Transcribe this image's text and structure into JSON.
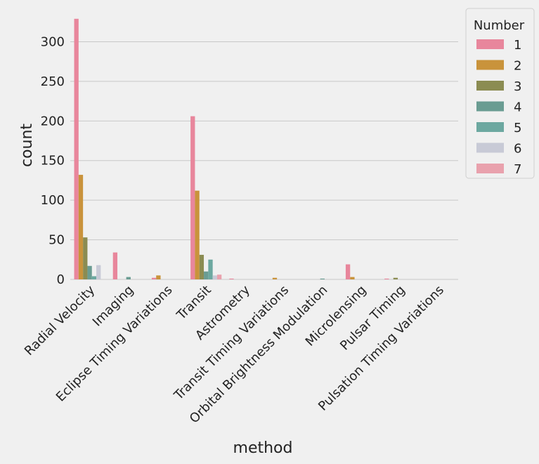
{
  "chart_data": {
    "type": "bar",
    "xlabel": "method",
    "ylabel": "count",
    "ylim": [
      0,
      335
    ],
    "yticks": [
      0,
      50,
      100,
      150,
      200,
      250,
      300
    ],
    "grid": "horizontal",
    "legend": {
      "title": "Number",
      "placement": "outside-top-right"
    },
    "categories": [
      "Radial Velocity",
      "Imaging",
      "Eclipse Timing Variations",
      "Transit",
      "Astrometry",
      "Transit Timing Variations",
      "Orbital Brightness Modulation",
      "Microlensing",
      "Pulsar Timing",
      "Pulsation Timing Variations"
    ],
    "series": [
      {
        "name": "1",
        "color": "#e8869c",
        "values": [
          329,
          34,
          2,
          206,
          1,
          0,
          0,
          19,
          1,
          0
        ]
      },
      {
        "name": "2",
        "color": "#c9933b",
        "values": [
          132,
          0,
          5,
          112,
          0,
          2,
          0,
          3,
          0,
          0
        ]
      },
      {
        "name": "3",
        "color": "#8b8c52",
        "values": [
          53,
          0,
          0,
          31,
          0,
          0,
          0,
          0,
          2,
          0
        ]
      },
      {
        "name": "4",
        "color": "#6a9c92",
        "values": [
          17,
          3,
          0,
          10,
          0,
          0,
          1,
          0,
          0,
          0
        ]
      },
      {
        "name": "5",
        "color": "#6ca8a0",
        "values": [
          4,
          0,
          0,
          25,
          0,
          0,
          0,
          0,
          0,
          0
        ]
      },
      {
        "name": "6",
        "color": "#c8cad6",
        "values": [
          18,
          0,
          0,
          5,
          0,
          0,
          0,
          0,
          0,
          0
        ]
      },
      {
        "name": "7",
        "color": "#e9a1ad",
        "values": [
          0,
          0,
          0,
          6,
          0,
          0,
          0,
          0,
          0,
          0
        ]
      }
    ]
  }
}
